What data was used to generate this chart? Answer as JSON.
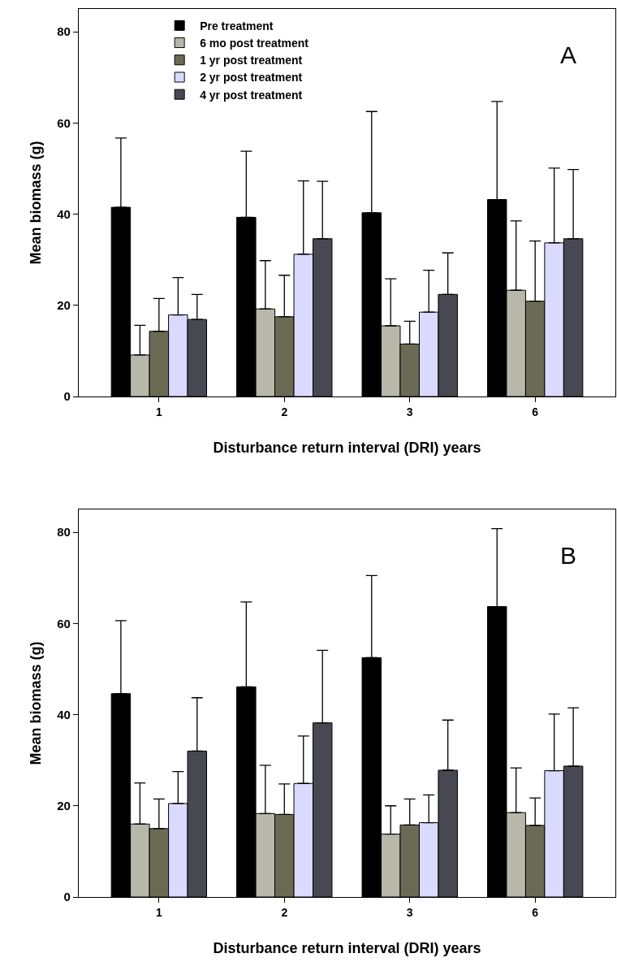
{
  "chart_data": [
    {
      "type": "bar",
      "categories": [
        "1",
        "2",
        "3",
        "6"
      ],
      "xlabel": "Disturbance return interval (DRI) years",
      "ylabel": "Mean biomass (g)",
      "ylim": [
        0,
        85
      ],
      "yticks": [
        0,
        20,
        40,
        60,
        80
      ],
      "grid": false,
      "legend": "top left",
      "annotations": [
        "A"
      ],
      "series": [
        {
          "name": "Pre treatment",
          "color": "#000000",
          "values": [
            41.5,
            39.3,
            40.3,
            43.2
          ],
          "errors": [
            [
              41.5,
              56.7
            ],
            [
              39.3,
              53.8
            ],
            [
              40.3,
              62.5
            ],
            [
              43.2,
              64.7
            ]
          ]
        },
        {
          "name": "6 mo post treatment",
          "color": "#b8b8aa",
          "values": [
            9.1,
            19.2,
            15.5,
            23.3
          ],
          "errors": [
            [
              9.1,
              15.6
            ],
            [
              19.2,
              29.8
            ],
            [
              15.5,
              25.8
            ],
            [
              23.3,
              38.5
            ]
          ]
        },
        {
          "name": "1 yr post treatment",
          "color": "#6b6b55",
          "values": [
            14.3,
            17.5,
            11.5,
            20.9
          ],
          "errors": [
            [
              14.3,
              21.5
            ],
            [
              17.5,
              26.6
            ],
            [
              11.5,
              16.5
            ],
            [
              20.9,
              34.1
            ]
          ]
        },
        {
          "name": "2 yr post treatment",
          "color": "#dadaff",
          "values": [
            17.9,
            31.2,
            18.5,
            33.7
          ],
          "errors": [
            [
              17.9,
              26.1
            ],
            [
              31.2,
              47.3
            ],
            [
              18.5,
              27.7
            ],
            [
              33.7,
              50.1
            ]
          ]
        },
        {
          "name": "4 yr post treatment",
          "color": "#484852",
          "values": [
            16.9,
            34.6,
            22.4,
            34.6
          ],
          "errors": [
            [
              16.9,
              22.4
            ],
            [
              34.6,
              47.2
            ],
            [
              22.4,
              31.5
            ],
            [
              34.6,
              49.8
            ]
          ]
        }
      ]
    },
    {
      "type": "bar",
      "categories": [
        "1",
        "2",
        "3",
        "6"
      ],
      "xlabel": "Disturbance return interval (DRI) years",
      "ylabel": "Mean biomass (g)",
      "ylim": [
        0,
        85
      ],
      "yticks": [
        0,
        20,
        40,
        60,
        80
      ],
      "grid": false,
      "annotations": [
        "B"
      ],
      "series": [
        {
          "color": "#000000",
          "values": [
            44.6,
            46.1,
            52.5,
            63.7
          ],
          "errors": [
            [
              44.6,
              60.6
            ],
            [
              46.1,
              64.7
            ],
            [
              52.5,
              70.5
            ],
            [
              63.7,
              80.8
            ]
          ]
        },
        {
          "color": "#b8b8aa",
          "values": [
            16.0,
            18.3,
            13.8,
            18.5
          ],
          "errors": [
            [
              16.0,
              25.0
            ],
            [
              18.3,
              28.9
            ],
            [
              13.8,
              20.0
            ],
            [
              18.5,
              28.3
            ]
          ]
        },
        {
          "color": "#6b6b55",
          "values": [
            15.0,
            18.1,
            15.8,
            15.7
          ],
          "errors": [
            [
              15.0,
              21.5
            ],
            [
              18.1,
              24.8
            ],
            [
              15.8,
              21.5
            ],
            [
              15.7,
              21.7
            ]
          ]
        },
        {
          "color": "#dadaff",
          "values": [
            20.5,
            24.9,
            16.3,
            27.7
          ],
          "errors": [
            [
              20.5,
              27.5
            ],
            [
              24.9,
              35.3
            ],
            [
              16.3,
              22.4
            ],
            [
              27.7,
              40.1
            ]
          ]
        },
        {
          "color": "#484852",
          "values": [
            32.0,
            38.2,
            27.8,
            28.7
          ],
          "errors": [
            [
              32.0,
              43.7
            ],
            [
              38.2,
              54.1
            ],
            [
              27.8,
              38.8
            ],
            [
              28.7,
              41.5
            ]
          ]
        }
      ]
    }
  ]
}
